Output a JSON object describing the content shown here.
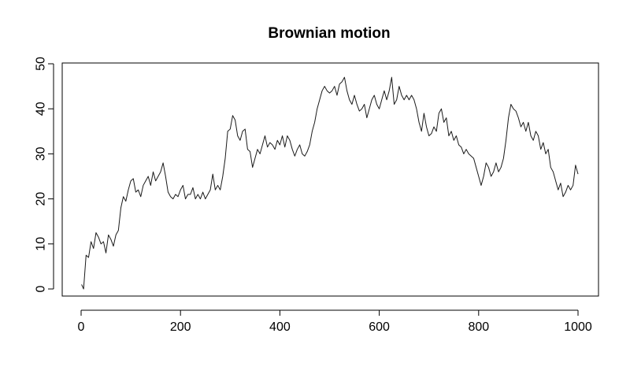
{
  "chart_data": {
    "type": "line",
    "title": "Brownian motion",
    "xlabel": "",
    "ylabel": "",
    "xlim": [
      0,
      1000
    ],
    "ylim": [
      0,
      50
    ],
    "x_ticks": [
      0,
      200,
      400,
      600,
      800,
      1000
    ],
    "y_ticks": [
      0,
      10,
      20,
      30,
      40,
      50
    ],
    "x_tick_labels": [
      "0",
      "200",
      "400",
      "600",
      "800",
      "1000"
    ],
    "y_tick_labels": [
      "0",
      "10",
      "20",
      "30",
      "40",
      "50"
    ],
    "grid": false,
    "series": [
      {
        "x": [
          1,
          5,
          10,
          15,
          20,
          25,
          30,
          35,
          40,
          45,
          50,
          55,
          60,
          65,
          70,
          75,
          80,
          85,
          90,
          95,
          100,
          105,
          110,
          115,
          120,
          125,
          130,
          135,
          140,
          145,
          150,
          155,
          160,
          165,
          170,
          175,
          180,
          185,
          190,
          195,
          200,
          205,
          210,
          215,
          220,
          225,
          230,
          235,
          240,
          245,
          250,
          255,
          260,
          265,
          270,
          275,
          280,
          285,
          290,
          295,
          300,
          305,
          310,
          315,
          320,
          325,
          330,
          335,
          340,
          345,
          350,
          355,
          360,
          365,
          370,
          375,
          380,
          385,
          390,
          395,
          400,
          405,
          410,
          415,
          420,
          425,
          430,
          435,
          440,
          445,
          450,
          455,
          460,
          465,
          470,
          475,
          480,
          485,
          490,
          495,
          500,
          505,
          510,
          515,
          520,
          525,
          530,
          535,
          540,
          545,
          550,
          555,
          560,
          565,
          570,
          575,
          580,
          585,
          590,
          595,
          600,
          605,
          610,
          615,
          620,
          625,
          630,
          635,
          640,
          645,
          650,
          655,
          660,
          665,
          670,
          675,
          680,
          685,
          690,
          695,
          700,
          705,
          710,
          715,
          720,
          725,
          730,
          735,
          740,
          745,
          750,
          755,
          760,
          765,
          770,
          775,
          780,
          785,
          790,
          795,
          800,
          805,
          810,
          815,
          820,
          825,
          830,
          835,
          840,
          845,
          850,
          855,
          860,
          865,
          870,
          875,
          880,
          885,
          890,
          895,
          900,
          905,
          910,
          915,
          920,
          925,
          930,
          935,
          940,
          945,
          950,
          955,
          960,
          965,
          970,
          975,
          980,
          985,
          990,
          995,
          1000
        ],
        "y": [
          1,
          0,
          7.5,
          7,
          10.5,
          9,
          12.5,
          11.5,
          10,
          10.5,
          8,
          12,
          11,
          9.5,
          12,
          13,
          18,
          20.5,
          19.5,
          22,
          24,
          24.5,
          21.5,
          22,
          20.5,
          23,
          24,
          25,
          23,
          26,
          24,
          25,
          26,
          28,
          25,
          21.5,
          20.5,
          20,
          21,
          20.5,
          22,
          23,
          20,
          21,
          21,
          22.5,
          20,
          21,
          20,
          21.5,
          20,
          21,
          22,
          25.5,
          22,
          23,
          22,
          25,
          29,
          35,
          35.5,
          38.5,
          37.5,
          34,
          33,
          35,
          35.5,
          31,
          30.5,
          27,
          29,
          31,
          30,
          32,
          34,
          31.5,
          32.5,
          32,
          31,
          33,
          32,
          34,
          31.5,
          34,
          33,
          31,
          29.5,
          31,
          32,
          30,
          29.5,
          30.5,
          32,
          35,
          37,
          40,
          42,
          44,
          45,
          44,
          43.5,
          44,
          45,
          43,
          45.5,
          46,
          47,
          44,
          42,
          41,
          43,
          41,
          39.5,
          40,
          41,
          38,
          40,
          42,
          43,
          41,
          40,
          42,
          44,
          42,
          44,
          47,
          41,
          42,
          45,
          43,
          42,
          43,
          42,
          43,
          42,
          40,
          37,
          35,
          39,
          36,
          34,
          34.5,
          36,
          35,
          39,
          40,
          37,
          38,
          34,
          35,
          33,
          34,
          32,
          31.5,
          30,
          31,
          30,
          29.5,
          29,
          27,
          25,
          23,
          25,
          28,
          27,
          25,
          26,
          28,
          26,
          27,
          29,
          33,
          38,
          41,
          40,
          39.5,
          38,
          36,
          37,
          35,
          37,
          34,
          33,
          35,
          34,
          31,
          32.5,
          30,
          31,
          27,
          26,
          24,
          22,
          23.5,
          20.5,
          21.5,
          23,
          22,
          23,
          27.5,
          25.5
        ]
      }
    ]
  }
}
